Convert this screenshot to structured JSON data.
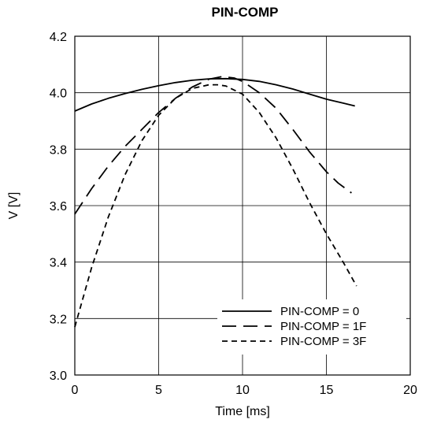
{
  "chart_data": {
    "type": "line",
    "title": "PIN-COMP",
    "xlabel": "Time [ms]",
    "ylabel": "V [V]",
    "xlim": [
      0,
      20
    ],
    "ylim": [
      3.0,
      4.2
    ],
    "xticks": [
      "0",
      "5",
      "10",
      "15",
      "20"
    ],
    "yticks": [
      "3.0",
      "3.2",
      "3.4",
      "3.6",
      "3.8",
      "4.0",
      "4.2"
    ],
    "grid": true,
    "legend_position": "bottom-right",
    "series": [
      {
        "name": "PIN-COMP = 0",
        "dash": "solid",
        "x": [
          0,
          1,
          2,
          3,
          4,
          5,
          6,
          7,
          8,
          9,
          10,
          11,
          12,
          13,
          14,
          15,
          16,
          16.7
        ],
        "y": [
          3.935,
          3.96,
          3.98,
          3.997,
          4.012,
          4.025,
          4.036,
          4.044,
          4.049,
          4.05,
          4.047,
          4.04,
          4.028,
          4.013,
          3.995,
          3.977,
          3.963,
          3.953
        ]
      },
      {
        "name": "PIN-COMP = 1F",
        "dash": "long",
        "x": [
          0,
          1,
          2,
          3,
          4,
          5,
          6,
          7,
          8,
          8.8,
          9.5,
          10,
          11,
          12,
          13,
          14,
          15,
          15.7,
          16.5
        ],
        "y": [
          3.57,
          3.66,
          3.74,
          3.81,
          3.87,
          3.93,
          3.98,
          4.02,
          4.048,
          4.057,
          4.052,
          4.04,
          4.0,
          3.945,
          3.87,
          3.79,
          3.72,
          3.68,
          3.645
        ]
      },
      {
        "name": "PIN-COMP = 3F",
        "dash": "short",
        "x": [
          0,
          1,
          2,
          3,
          4,
          5,
          6,
          7,
          8,
          8.5,
          9,
          10,
          11,
          12,
          13,
          14,
          15,
          16,
          16.8
        ],
        "y": [
          3.17,
          3.38,
          3.56,
          3.71,
          3.83,
          3.92,
          3.98,
          4.015,
          4.028,
          4.028,
          4.024,
          3.995,
          3.93,
          3.84,
          3.73,
          3.61,
          3.5,
          3.4,
          3.315
        ]
      }
    ]
  }
}
